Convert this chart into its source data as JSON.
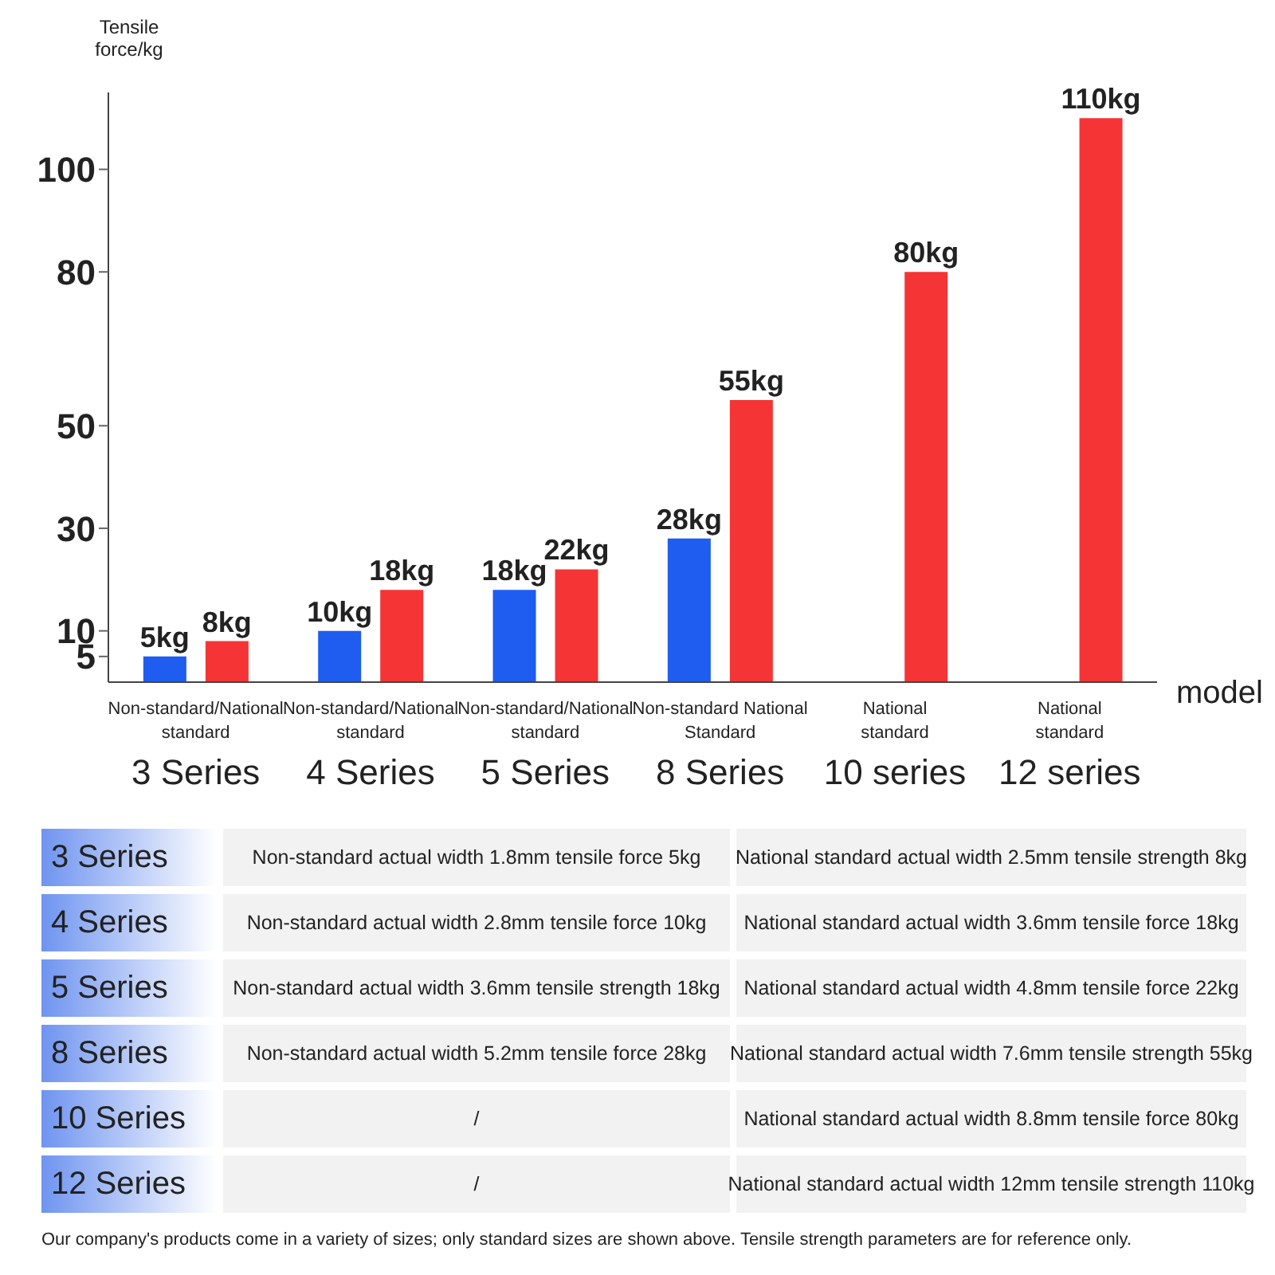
{
  "chart_data": {
    "type": "bar",
    "ylabel": "Tensile force/kg",
    "xlabel": "model",
    "categories": [
      "Non-standard/National\nstandard\n3 Series",
      "Non-standard/National\nstandard\n4 Series",
      "Non-standard/National\nstandard\n5 Series",
      "Non-standard National\nStandard\n8 Series",
      "National\nstandard\n10 series",
      "National\nstandard\n12 series"
    ],
    "series": [
      {
        "color": "#1f5cf0",
        "values": [
          5,
          10,
          18,
          28,
          null,
          null
        ],
        "value_labels": [
          "5kg",
          "10kg",
          "18kg",
          "28kg",
          null,
          null
        ]
      },
      {
        "color": "#f53535",
        "values": [
          8,
          18,
          22,
          55,
          80,
          110
        ],
        "value_labels": [
          "8kg",
          "18kg",
          "22kg",
          "55kg",
          "80kg",
          "110kg"
        ]
      }
    ],
    "ylim": [
      0,
      115
    ],
    "yticks": [
      5,
      10,
      30,
      50,
      80,
      100
    ],
    "annotations": [
      "3 Series",
      "Non-standard actual width 1.8mm tensile force 5kg",
      "National standard actual width 2.5mm tensile strength 8kg",
      "4 Series",
      "Non-standard actual width 2.8mm tensile force 10kg",
      "National standard actual width 3.6mm tensile force 18kg",
      "5 Series",
      "Non-standard actual width 3.6mm tensile strength 18kg",
      "National standard actual width 4.8mm tensile force 22kg",
      "8 Series",
      "Non-standard actual width 5.2mm tensile force 28kg",
      "National standard actual width 7.6mm tensile strength 55kg",
      "10 Series",
      "/",
      "National standard actual width 8.8mm tensile force 80kg",
      "12 Series",
      "/",
      "National standard actual width 12mm tensile strength 110kg",
      "Our company's products come in a variety of sizes; only standard sizes are shown above. Tensile strength parameters are for reference only."
    ]
  }
}
